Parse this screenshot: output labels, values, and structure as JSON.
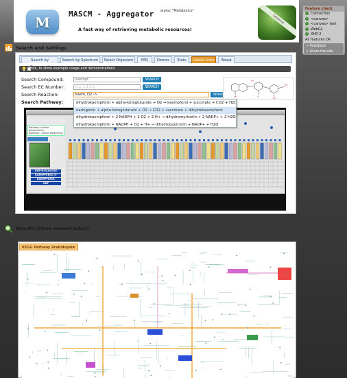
{
  "header": {
    "logo_letters": "M",
    "app_title": "MASCM - Aggregator",
    "version_tag": "alpha: \"Metabolica\"",
    "tagline": "A fast way of retrieving metabolic resources!",
    "image_ribbon": "Sequence"
  },
  "feature_check": {
    "title": "Feature check",
    "items": [
      "Connection",
      "<canvas>",
      "<canvas> text",
      "WebGL",
      "XHR 2",
      "All features OK"
    ],
    "links": [
      "Feedback",
      "share the site"
    ]
  },
  "search_section": {
    "title": "Search and Settings",
    "tabs": [
      "Search by Compound",
      "Search by Spectrum",
      "Select Organism",
      "FAQ",
      "Demos",
      "Stats",
      "Useful Links",
      "About"
    ],
    "active_tab": "Useful Links",
    "tip": "Trick, to show example usage and demonstrations",
    "fields": {
      "compound_label": "Search Compound:",
      "compound_value": "kaempf",
      "ec_label": "Search EC Number:",
      "ec_placeholder": "e.g. 1.1.1.1",
      "reaction_label": "Search Reaction:",
      "reaction_value": "kaem, O2 ->",
      "pathway_label": "Search Pathway:"
    },
    "search_button": "SEARCH",
    "autocomplete": [
      "dihydrokaempferol + alpha-ketoglutarate + O2 → kaempferol + succinate + CO2 + H2O",
      "naringenin + alpha-ketoglutarate + O2 → CO2 + succinate + dihydrokaempferol",
      "dihydrokaempferol + 2 NADPH + 2 O2 + 2 H+ → dihydromyricetin + 2 NADP+ + 2 H2O",
      "dihydrokaempferol + NADPH + O2 + H+ → dihydroquercetin + NADP+ + H2O"
    ],
    "highlighted_index": 1
  },
  "pathway_viewer": {
    "side_box_text": [
      "Pathway: uridine biosynthesis",
      "Reaction: uridine biogenesis"
    ],
    "chips": [
      "UDP-D-GLUCOSE",
      "KAEMPFEROL-3-",
      "KAEMPFEROL",
      "UDP"
    ]
  },
  "results_section": {
    "title": "Results (Close unused tabs!):",
    "tab_label": "KEGG Pathway Arabidopsis t."
  },
  "colors": {
    "accent_orange": "#e79a2c",
    "search_blue": "#1d7db3",
    "chip_blue": "#1747a6"
  }
}
